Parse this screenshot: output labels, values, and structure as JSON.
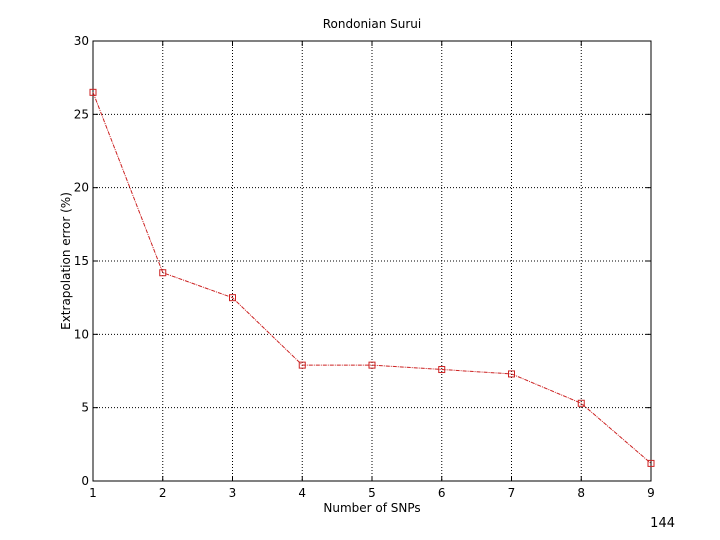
{
  "chart_data": {
    "type": "line",
    "title": "Rondonian Surui",
    "xlabel": "Number of SNPs",
    "ylabel": "Extrapolation error (%)",
    "xlim": [
      1,
      9
    ],
    "ylim": [
      0,
      30
    ],
    "x_ticks": [
      1,
      2,
      3,
      4,
      5,
      6,
      7,
      8,
      9
    ],
    "y_ticks": [
      0,
      5,
      10,
      15,
      20,
      25,
      30
    ],
    "grid": true,
    "series": [
      {
        "x": [
          1,
          2,
          3,
          4,
          5,
          6,
          7,
          8,
          9
        ],
        "values": [
          26.5,
          14.2,
          12.5,
          7.9,
          7.9,
          7.6,
          7.3,
          5.3,
          1.2
        ],
        "color": "#cc2222",
        "marker": "square"
      }
    ]
  },
  "page_number": "144"
}
